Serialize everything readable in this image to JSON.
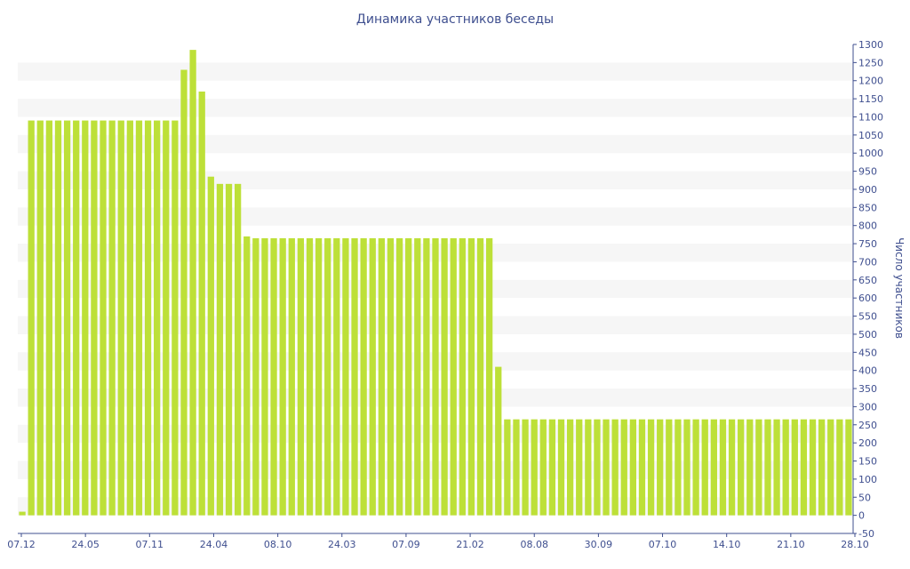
{
  "chart_data": {
    "type": "bar",
    "title": "Динамика участников беседы",
    "ylabel": "Число участников",
    "ylim": [
      -50,
      1300
    ],
    "ytick_step": 50,
    "grid": true,
    "x_tick_labels": [
      "07.12",
      "24.05",
      "07.11",
      "24.04",
      "08.10",
      "24.03",
      "07.09",
      "21.02",
      "08.08",
      "30.09",
      "07.10",
      "14.10",
      "21.10",
      "28.10"
    ],
    "values": [
      10,
      1090,
      1090,
      1090,
      1090,
      1090,
      1090,
      1090,
      1090,
      1090,
      1090,
      1090,
      1090,
      1090,
      1090,
      1090,
      1090,
      1090,
      1230,
      1285,
      1170,
      935,
      915,
      915,
      915,
      770,
      765,
      765,
      765,
      765,
      765,
      765,
      765,
      765,
      765,
      765,
      765,
      765,
      765,
      765,
      765,
      765,
      765,
      765,
      765,
      765,
      765,
      765,
      765,
      765,
      765,
      765,
      765,
      410,
      265,
      265,
      265,
      265,
      265,
      265,
      265,
      265,
      265,
      265,
      265,
      265,
      265,
      265,
      265,
      265,
      265,
      265,
      265,
      265,
      265,
      265,
      265,
      265,
      265,
      265,
      265,
      265,
      265,
      265,
      265,
      265,
      265,
      265,
      265,
      265,
      265,
      265,
      265
    ],
    "colors": {
      "bar": "#bde038",
      "band": "#f6f6f6",
      "axis": "#3f4f8f"
    }
  }
}
